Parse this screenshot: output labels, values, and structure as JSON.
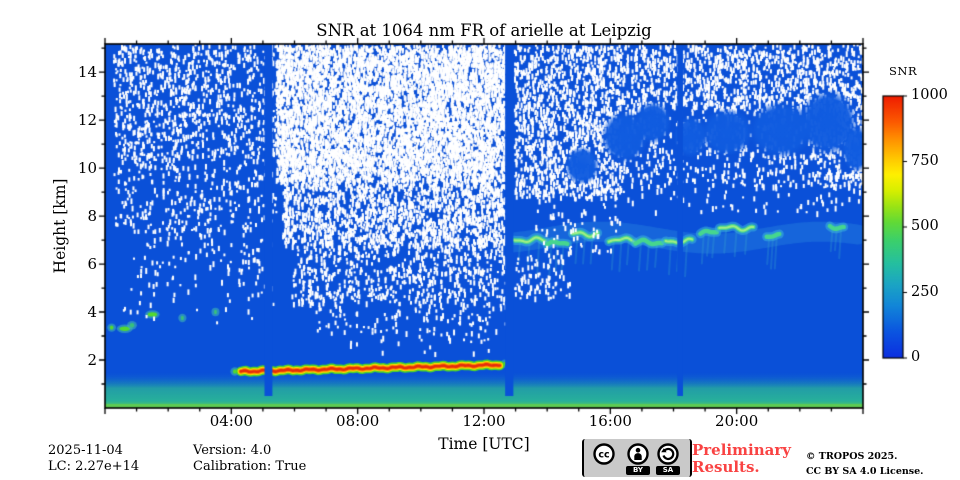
{
  "figure": {
    "title": "SNR at 1064 nm FR of arielle at Leipzig",
    "footer": {
      "date": "2025-11-04",
      "lc": "LC: 2.27e+14",
      "version": "Version: 4.0",
      "calibration": "Calibration: True",
      "preliminary_line1": "Preliminary",
      "preliminary_line2": "Results.",
      "preliminary_color": "#f94343",
      "copyright_line1": "© TROPOS 2025.",
      "copyright_line2": "CC BY SA 4.0 License.",
      "cc_badge": {
        "icons": [
          "cc",
          "by-person",
          "sa-arrow"
        ],
        "tag_by": "BY",
        "tag_sa": "SA"
      }
    }
  },
  "chart_data": {
    "type": "heatmap",
    "title": "SNR at 1064 nm FR of arielle at Leipzig",
    "xlabel": "Time [UTC]",
    "ylabel": "Height [km]",
    "x_range_hours": [
      0,
      24
    ],
    "x_major_ticks": [
      {
        "hour": 4,
        "label": "04:00"
      },
      {
        "hour": 8,
        "label": "08:00"
      },
      {
        "hour": 12,
        "label": "12:00"
      },
      {
        "hour": 16,
        "label": "16:00"
      },
      {
        "hour": 20,
        "label": "20:00"
      }
    ],
    "x_minor_step_hours": 1,
    "y_range_km": [
      0,
      15.17
    ],
    "y_major_ticks_km": [
      2,
      4,
      6,
      8,
      10,
      12,
      14
    ],
    "y_minor_step_km": 1,
    "grid": false,
    "colorbar": {
      "label": "SNR",
      "range": [
        0,
        1000
      ],
      "ticks": [
        0,
        250,
        500,
        750,
        1000
      ],
      "stops": [
        [
          0.0,
          "#0b2ee0"
        ],
        [
          0.1,
          "#0b55e0"
        ],
        [
          0.2,
          "#1286d8"
        ],
        [
          0.28,
          "#1ba4c4"
        ],
        [
          0.36,
          "#25bfa0"
        ],
        [
          0.45,
          "#3cd06a"
        ],
        [
          0.52,
          "#63da35"
        ],
        [
          0.58,
          "#9ce414"
        ],
        [
          0.64,
          "#d8ef00"
        ],
        [
          0.7,
          "#fff000"
        ],
        [
          0.76,
          "#ffc800"
        ],
        [
          0.83,
          "#ff9400"
        ],
        [
          0.9,
          "#fc5a00"
        ],
        [
          1.0,
          "#ef1c00"
        ]
      ]
    },
    "background": {
      "base_color": "#0a50d8",
      "masked_color": "#ffffff",
      "background_snr": 50
    },
    "boundary_layer": {
      "top_km": 1.5,
      "surface_snr": 450,
      "surface_color": "#5ecb52",
      "mid_color": "#28b09b"
    },
    "aerosol_layer": {
      "start_hour": 4.3,
      "end_hour": 12.55,
      "base_height_km": 1.52,
      "end_height_km": 1.8,
      "thickness_km": 0.22,
      "peak_snr": 1000,
      "core_color": "#e62c0c",
      "ring_colors": [
        "#ff8a00",
        "#ffe000",
        "#49d42b"
      ]
    },
    "cirrus_layer": {
      "height_km": 7.0,
      "typical_snr": 320,
      "color": "#46d68e",
      "glow_color": "rgba(45,140,225,0.35)",
      "segments": [
        {
          "t0": 12.95,
          "t1": 13.95,
          "h": 7.0,
          "bright": true
        },
        {
          "t0": 14.0,
          "t1": 14.65,
          "h": 6.85,
          "bright": false
        },
        {
          "t0": 14.8,
          "t1": 15.6,
          "h": 7.25,
          "bright": true
        },
        {
          "t0": 15.95,
          "t1": 16.75,
          "h": 7.0,
          "bright": true
        },
        {
          "t0": 16.8,
          "t1": 17.65,
          "h": 6.9,
          "bright": false
        },
        {
          "t0": 17.75,
          "t1": 18.6,
          "h": 6.95,
          "bright": true
        },
        {
          "t0": 18.85,
          "t1": 19.4,
          "h": 7.3,
          "bright": false
        },
        {
          "t0": 19.45,
          "t1": 20.55,
          "h": 7.5,
          "bright": true
        },
        {
          "t0": 20.95,
          "t1": 21.35,
          "h": 7.15,
          "bright": false
        },
        {
          "t0": 22.95,
          "t1": 23.4,
          "h": 7.55,
          "bright": false
        }
      ]
    },
    "detached_echoes": [
      {
        "t": 0.15,
        "h": 3.35,
        "dur": 0.12,
        "bright": true
      },
      {
        "t": 0.45,
        "h": 3.3,
        "dur": 0.35,
        "bright": true
      },
      {
        "t": 0.78,
        "h": 3.45,
        "dur": 0.15,
        "bright": false
      },
      {
        "t": 1.35,
        "h": 3.9,
        "dur": 0.3,
        "bright": true
      },
      {
        "t": 2.4,
        "h": 3.75,
        "dur": 0.1,
        "bright": false
      },
      {
        "t": 3.45,
        "h": 4.0,
        "dur": 0.06,
        "bright": false
      },
      {
        "t": 4.05,
        "h": 1.52,
        "dur": 0.12,
        "bright": true
      },
      {
        "t": 12.62,
        "h": 1.85,
        "dur": 0.08,
        "bright": true
      }
    ],
    "data_gaps_hours": [
      {
        "start_hour": 5.05,
        "end_hour": 5.3
      },
      {
        "start_hour": 12.67,
        "end_hour": 12.93
      },
      {
        "start_hour": 18.12,
        "end_hour": 18.3
      }
    ],
    "noise_regions": [
      {
        "t": [
          0.25,
          5.4
        ],
        "h": [
          10.5,
          15.17
        ],
        "coverage": 0.3
      },
      {
        "t": [
          0.25,
          5.4
        ],
        "h": [
          7.5,
          10.5
        ],
        "coverage": 0.17
      },
      {
        "t": [
          0.8,
          5.4
        ],
        "h": [
          5.2,
          7.5
        ],
        "coverage": 0.09
      },
      {
        "t": [
          0.3,
          5.4
        ],
        "h": [
          3.6,
          5.2
        ],
        "coverage": 0.035
      },
      {
        "t": [
          5.4,
          12.67
        ],
        "h": [
          9.5,
          15.17
        ],
        "coverage": 0.8
      },
      {
        "t": [
          5.6,
          12.67
        ],
        "h": [
          6.8,
          9.5
        ],
        "coverage": 0.55
      },
      {
        "t": [
          5.9,
          12.67
        ],
        "h": [
          4.4,
          6.8
        ],
        "coverage": 0.3
      },
      {
        "t": [
          6.6,
          12.67
        ],
        "h": [
          3.1,
          4.4
        ],
        "coverage": 0.13
      },
      {
        "t": [
          7.5,
          12.4
        ],
        "h": [
          2.3,
          3.1
        ],
        "coverage": 0.05
      },
      {
        "t": [
          12.93,
          16.3
        ],
        "h": [
          8.8,
          15.17
        ],
        "coverage": 0.46
      },
      {
        "t": [
          12.93,
          14.7
        ],
        "h": [
          4.6,
          6.4
        ],
        "coverage": 0.22
      },
      {
        "t": [
          13.6,
          16.3
        ],
        "h": [
          6.4,
          8.8
        ],
        "coverage": 0.1
      },
      {
        "t": [
          16.3,
          24
        ],
        "h": [
          12.4,
          15.17
        ],
        "coverage": 0.42
      },
      {
        "t": [
          16.3,
          24
        ],
        "h": [
          9.3,
          12.4
        ],
        "coverage": 0.2
      },
      {
        "t": [
          16.3,
          23.9
        ],
        "h": [
          8.2,
          9.3
        ],
        "coverage": 0.07
      },
      {
        "t": [
          22.5,
          24
        ],
        "h": [
          9.3,
          12.4
        ],
        "coverage": 0.3
      }
    ],
    "cloud_patches": [
      {
        "t": 15.1,
        "h": 10.1,
        "rt": 0.55,
        "rh": 0.8
      },
      {
        "t": 16.45,
        "h": 11.3,
        "rt": 0.75,
        "rh": 1.1
      },
      {
        "t": 17.35,
        "h": 11.9,
        "rt": 0.6,
        "rh": 0.9
      },
      {
        "t": 18.55,
        "h": 11.3,
        "rt": 0.55,
        "rh": 0.9
      },
      {
        "t": 19.7,
        "h": 11.5,
        "rt": 0.85,
        "rh": 1.0
      },
      {
        "t": 21.4,
        "h": 11.6,
        "rt": 1.05,
        "rh": 1.2
      },
      {
        "t": 22.9,
        "h": 11.9,
        "rt": 0.95,
        "rh": 1.4
      },
      {
        "t": 23.8,
        "h": 10.8,
        "rt": 0.5,
        "rh": 1.0
      }
    ]
  }
}
